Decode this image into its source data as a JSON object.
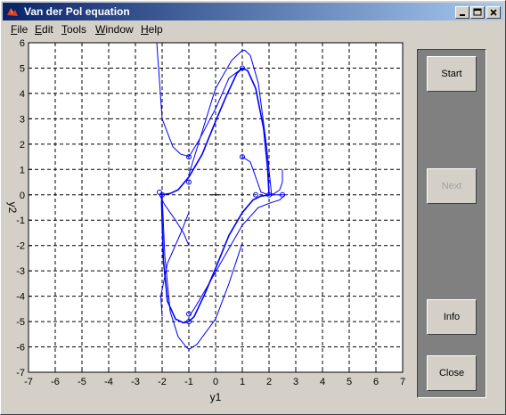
{
  "window": {
    "title": "Van der Pol equation"
  },
  "menu": [
    {
      "label": "File",
      "accel": "F",
      "rest": "ile"
    },
    {
      "label": "Edit",
      "accel": "E",
      "rest": "dit"
    },
    {
      "label": "Tools",
      "accel": "T",
      "rest": "ools"
    },
    {
      "label": "Window",
      "accel": "W",
      "rest": "indow"
    },
    {
      "label": "Help",
      "accel": "H",
      "rest": "elp"
    }
  ],
  "buttons": {
    "start": "Start",
    "next": "Next",
    "info": "Info",
    "close": "Close"
  },
  "chart_data": {
    "type": "line",
    "xlabel": "y1",
    "ylabel": "y2",
    "xlim": [
      -7,
      7
    ],
    "ylim": [
      -7,
      6
    ],
    "xticks": [
      -7,
      -6,
      -5,
      -4,
      -3,
      -2,
      -1,
      0,
      1,
      2,
      3,
      4,
      5,
      6,
      7
    ],
    "yticks": [
      6,
      5,
      4,
      3,
      2,
      1,
      0,
      -1,
      -2,
      -3,
      -4,
      -5,
      -6,
      -7
    ],
    "grid": true,
    "line_color": "#0000ff",
    "limit_cycle": {
      "x": [
        2.0,
        1.95,
        1.8,
        1.5,
        1.2,
        1.0,
        0.8,
        0.4,
        0.0,
        -0.5,
        -1.0,
        -1.4,
        -1.7,
        -1.9,
        -2.0,
        -2.02,
        -2.0,
        -1.95,
        -1.8,
        -1.5,
        -1.2,
        -1.0,
        -0.8,
        -0.4,
        0.0,
        0.5,
        1.0,
        1.4,
        1.7,
        1.9,
        2.0
      ],
      "y": [
        0.0,
        1.0,
        2.6,
        4.2,
        4.9,
        5.0,
        4.8,
        3.9,
        2.9,
        1.6,
        0.7,
        0.2,
        0.05,
        0.02,
        0.0,
        -0.3,
        -1.0,
        -2.6,
        -4.2,
        -4.9,
        -5.05,
        -5.0,
        -4.8,
        -3.9,
        -2.9,
        -1.6,
        -0.7,
        -0.2,
        -0.05,
        -0.02,
        0.0
      ]
    },
    "trajectories": [
      {
        "x": [
          -2.2,
          -2.0,
          -1.6,
          -1.3,
          -1.1,
          -1.0,
          -0.6,
          0.0,
          0.5,
          1.0
        ],
        "y": [
          6.0,
          3.0,
          1.9,
          1.6,
          1.55,
          1.5,
          2.2,
          3.4,
          4.6,
          5.0
        ]
      },
      {
        "x": [
          2.1,
          1.9,
          1.6,
          1.3,
          1.1,
          1.0,
          0.6,
          0.0,
          -0.5,
          -1.0
        ],
        "y": [
          -0.05,
          2.0,
          4.4,
          5.5,
          5.7,
          5.7,
          5.3,
          4.2,
          2.5,
          0.8
        ]
      },
      {
        "x": [
          -1.0,
          -1.3,
          -1.8,
          -2.05,
          -2.0
        ],
        "y": [
          -0.7,
          -1.5,
          -2.7,
          -4.0,
          -4.8
        ]
      },
      {
        "x": [
          -2.0,
          -1.9,
          -1.7,
          -1.4,
          -1.1,
          -1.0,
          -0.7,
          0.0,
          0.5,
          1.0
        ],
        "y": [
          0.0,
          -2.4,
          -4.6,
          -5.6,
          -6.0,
          -6.1,
          -5.9,
          -4.9,
          -3.5,
          -1.9
        ]
      },
      {
        "x": [
          2.6,
          2.4,
          2.1,
          1.6,
          1.0,
          0.4,
          -0.3,
          -0.8,
          -1.0
        ],
        "y": [
          0.0,
          -0.2,
          -0.3,
          -0.5,
          -1.2,
          -2.3,
          -3.6,
          -4.5,
          -4.8
        ]
      },
      {
        "x": [
          1.0,
          1.3,
          1.5,
          1.7,
          2.0,
          2.4,
          2.6
        ],
        "y": [
          1.5,
          1.3,
          0.7,
          0.1,
          0.0,
          0.0,
          0.0
        ]
      },
      {
        "x": [
          -1.0,
          -1.2,
          -1.5,
          -1.9,
          -2.1,
          -2.0
        ],
        "y": [
          -2.0,
          -1.5,
          -1.0,
          -0.4,
          0.0,
          0.05
        ]
      },
      {
        "x": [
          2.5,
          2.5,
          2.4,
          2.2,
          2.0
        ],
        "y": [
          1.0,
          0.5,
          0.2,
          0.05,
          0.0
        ]
      }
    ],
    "markers": {
      "x": [
        -1.0,
        1.0,
        -2.0,
        2.0,
        -2.1,
        1.5,
        2.5,
        -1.0,
        1.0,
        -1.0,
        -1.0
      ],
      "y": [
        1.5,
        5.0,
        0.0,
        0.0,
        0.1,
        0.0,
        0.0,
        -5.0,
        1.5,
        -4.7,
        0.5
      ]
    }
  }
}
